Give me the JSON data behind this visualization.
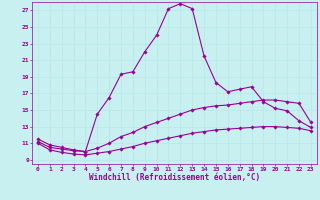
{
  "xlabel": "Windchill (Refroidissement éolien,°C)",
  "ylabel": "",
  "bg_color": "#c8f0f0",
  "line_color": "#990099",
  "grid_color": "#b8e8e8",
  "xlim": [
    -0.5,
    23.5
  ],
  "ylim": [
    8.5,
    28.0
  ],
  "xticks": [
    0,
    1,
    2,
    3,
    4,
    5,
    6,
    7,
    8,
    9,
    10,
    11,
    12,
    13,
    14,
    15,
    16,
    17,
    18,
    19,
    20,
    21,
    22,
    23
  ],
  "yticks": [
    9,
    11,
    13,
    15,
    17,
    19,
    21,
    23,
    25,
    27
  ],
  "line1_x": [
    0,
    1,
    2,
    3,
    4,
    5,
    6,
    7,
    8,
    9,
    10,
    11,
    12,
    13,
    14,
    15,
    16,
    17,
    18,
    19,
    20,
    21,
    22,
    23
  ],
  "line1_y": [
    11.5,
    10.8,
    10.5,
    10.2,
    10.0,
    14.5,
    16.5,
    19.3,
    19.6,
    22.0,
    24.0,
    27.2,
    27.8,
    27.2,
    21.5,
    18.3,
    17.2,
    17.5,
    17.8,
    16.0,
    15.2,
    14.9,
    13.7,
    12.9
  ],
  "line2_x": [
    0,
    1,
    2,
    3,
    4,
    5,
    6,
    7,
    8,
    9,
    10,
    11,
    12,
    13,
    14,
    15,
    16,
    17,
    18,
    19,
    20,
    21,
    22,
    23
  ],
  "line2_y": [
    11.2,
    10.5,
    10.3,
    10.1,
    10.0,
    10.4,
    11.0,
    11.8,
    12.3,
    13.0,
    13.5,
    14.0,
    14.5,
    15.0,
    15.3,
    15.5,
    15.6,
    15.8,
    16.0,
    16.2,
    16.2,
    16.0,
    15.8,
    13.5
  ],
  "line3_x": [
    0,
    1,
    2,
    3,
    4,
    5,
    6,
    7,
    8,
    9,
    10,
    11,
    12,
    13,
    14,
    15,
    16,
    17,
    18,
    19,
    20,
    21,
    22,
    23
  ],
  "line3_y": [
    11.0,
    10.2,
    9.9,
    9.7,
    9.6,
    9.8,
    10.0,
    10.3,
    10.6,
    11.0,
    11.3,
    11.6,
    11.9,
    12.2,
    12.4,
    12.6,
    12.7,
    12.8,
    12.9,
    13.0,
    13.0,
    12.9,
    12.8,
    12.5
  ],
  "marker": "D",
  "markersize": 1.8,
  "linewidth": 0.8,
  "tick_fontsize": 4.5,
  "label_fontsize": 5.5
}
